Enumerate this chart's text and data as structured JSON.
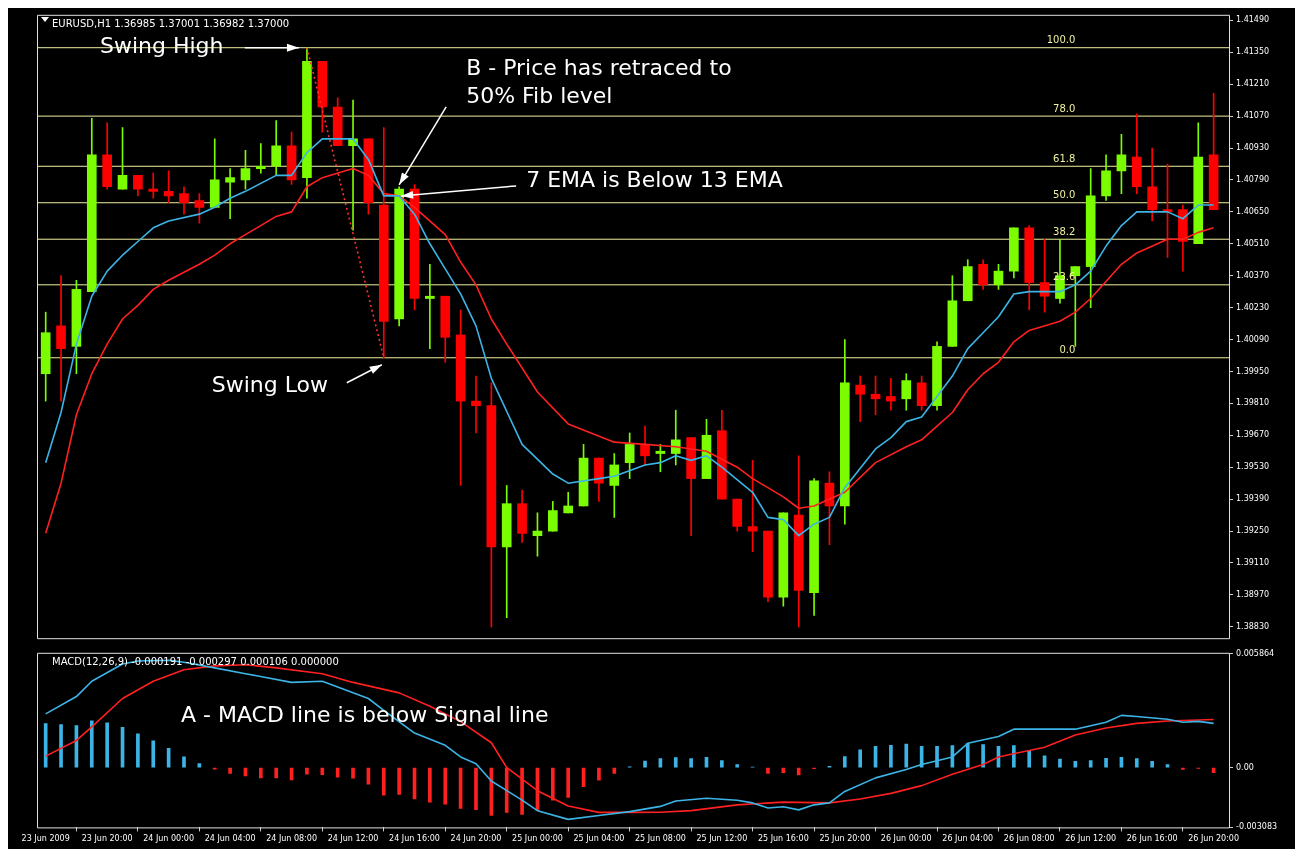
{
  "chart_data": [
    {
      "type": "candlestick",
      "title": "EURUSD,H1 1.36985 1.37001 1.36982 1.37000",
      "x": [
        "2009-06-23T16:00",
        "2009-06-23T17:00",
        "2009-06-23T18:00",
        "2009-06-23T19:00",
        "2009-06-23T20:00",
        "2009-06-23T21:00",
        "2009-06-23T22:00",
        "2009-06-23T23:00",
        "2009-06-24T00:00",
        "2009-06-24T01:00",
        "2009-06-24T02:00",
        "2009-06-24T03:00",
        "2009-06-24T04:00",
        "2009-06-24T05:00",
        "2009-06-24T06:00",
        "2009-06-24T07:00",
        "2009-06-24T08:00",
        "2009-06-24T09:00",
        "2009-06-24T10:00",
        "2009-06-24T11:00",
        "2009-06-24T12:00",
        "2009-06-24T13:00",
        "2009-06-24T14:00",
        "2009-06-24T15:00",
        "2009-06-24T16:00",
        "2009-06-24T17:00",
        "2009-06-24T18:00",
        "2009-06-24T19:00",
        "2009-06-24T20:00",
        "2009-06-24T21:00",
        "2009-06-24T22:00",
        "2009-06-24T23:00",
        "2009-06-25T00:00",
        "2009-06-25T01:00",
        "2009-06-25T02:00",
        "2009-06-25T03:00",
        "2009-06-25T04:00",
        "2009-06-25T05:00",
        "2009-06-25T06:00",
        "2009-06-25T07:00",
        "2009-06-25T08:00",
        "2009-06-25T09:00",
        "2009-06-25T10:00",
        "2009-06-25T11:00",
        "2009-06-25T12:00",
        "2009-06-25T13:00",
        "2009-06-25T14:00",
        "2009-06-25T15:00",
        "2009-06-25T16:00",
        "2009-06-25T17:00",
        "2009-06-25T18:00",
        "2009-06-25T19:00",
        "2009-06-25T20:00",
        "2009-06-25T21:00",
        "2009-06-25T22:00",
        "2009-06-25T23:00",
        "2009-06-26T00:00",
        "2009-06-26T01:00",
        "2009-06-26T02:00",
        "2009-06-26T03:00",
        "2009-06-26T04:00",
        "2009-06-26T05:00",
        "2009-06-26T06:00",
        "2009-06-26T07:00",
        "2009-06-26T08:00",
        "2009-06-26T09:00",
        "2009-06-26T10:00",
        "2009-06-26T11:00",
        "2009-06-26T12:00",
        "2009-06-26T13:00",
        "2009-06-26T14:00",
        "2009-06-26T15:00",
        "2009-06-26T16:00",
        "2009-06-26T17:00",
        "2009-06-26T18:00",
        "2009-06-26T19:00",
        "2009-06-26T20:00"
      ],
      "ohlc": [
        [
          1.3994,
          1.4021,
          1.3982,
          1.4012
        ],
        [
          1.4015,
          1.4037,
          1.3982,
          1.4005
        ],
        [
          1.4006,
          1.4035,
          1.3994,
          1.4031
        ],
        [
          1.403,
          1.4106,
          1.403,
          1.409
        ],
        [
          1.409,
          1.4104,
          1.4075,
          1.4076
        ],
        [
          1.4075,
          1.4102,
          1.4075,
          1.4081
        ],
        [
          1.4081,
          1.4081,
          1.4072,
          1.4075
        ],
        [
          1.4075,
          1.4082,
          1.4071,
          1.4074
        ],
        [
          1.4074,
          1.4083,
          1.4069,
          1.4072
        ],
        [
          1.4073,
          1.4076,
          1.4064,
          1.4069
        ],
        [
          1.407,
          1.4073,
          1.406,
          1.4067
        ],
        [
          1.4067,
          1.4097,
          1.4067,
          1.4079
        ],
        [
          1.4078,
          1.4084,
          1.4062,
          1.408
        ],
        [
          1.4079,
          1.4092,
          1.4075,
          1.4084
        ],
        [
          1.4084,
          1.4095,
          1.4082,
          1.4085
        ],
        [
          1.4085,
          1.4105,
          1.4081,
          1.4094
        ],
        [
          1.4094,
          1.41,
          1.4077,
          1.4079
        ],
        [
          1.408,
          1.4137,
          1.4071,
          1.4131
        ],
        [
          1.4131,
          1.4131,
          1.41,
          1.4111
        ],
        [
          1.4111,
          1.4115,
          1.4094,
          1.4094
        ],
        [
          1.4094,
          1.4114,
          1.4057,
          1.4097
        ],
        [
          1.4097,
          1.4097,
          1.4064,
          1.4069
        ],
        [
          1.4068,
          1.4102,
          1.4001,
          1.4017
        ],
        [
          1.4018,
          1.4076,
          1.4015,
          1.4075
        ],
        [
          1.4075,
          1.4077,
          1.4022,
          1.4027
        ],
        [
          1.4027,
          1.4042,
          1.4005,
          1.4028
        ],
        [
          1.4028,
          1.4028,
          1.3999,
          1.401
        ],
        [
          1.4011,
          1.4022,
          1.3945,
          1.3982
        ],
        [
          1.3982,
          1.3993,
          1.3968,
          1.398
        ],
        [
          1.398,
          1.399,
          1.3883,
          1.3918
        ],
        [
          1.3918,
          1.3945,
          1.3887,
          1.3937
        ],
        [
          1.3937,
          1.3943,
          1.392,
          1.3924
        ],
        [
          1.3923,
          1.3933,
          1.3914,
          1.3925
        ],
        [
          1.3925,
          1.3938,
          1.3925,
          1.3934
        ],
        [
          1.3933,
          1.3942,
          1.3933,
          1.3936
        ],
        [
          1.3936,
          1.3963,
          1.3936,
          1.3957
        ],
        [
          1.3957,
          1.3957,
          1.3938,
          1.3946
        ],
        [
          1.3945,
          1.3959,
          1.3931,
          1.3954
        ],
        [
          1.3955,
          1.3968,
          1.3948,
          1.3963
        ],
        [
          1.3963,
          1.3971,
          1.3954,
          1.3958
        ],
        [
          1.3959,
          1.3963,
          1.3951,
          1.396
        ],
        [
          1.3959,
          1.3978,
          1.3954,
          1.3965
        ],
        [
          1.3966,
          1.3966,
          1.3923,
          1.3948
        ],
        [
          1.3948,
          1.3974,
          1.3948,
          1.3967
        ],
        [
          1.3969,
          1.3978,
          1.3939,
          1.3939
        ],
        [
          1.3939,
          1.3939,
          1.3925,
          1.3927
        ],
        [
          1.3927,
          1.3956,
          1.3916,
          1.3925
        ],
        [
          1.3925,
          1.3925,
          1.3894,
          1.3896
        ],
        [
          1.3896,
          1.3933,
          1.3892,
          1.3933
        ],
        [
          1.3932,
          1.3958,
          1.3883,
          1.3899
        ],
        [
          1.3898,
          1.3948,
          1.3888,
          1.3947
        ],
        [
          1.3946,
          1.3951,
          1.3919,
          1.3936
        ],
        [
          1.3936,
          1.4009,
          1.3928,
          1.399
        ],
        [
          1.3989,
          1.3993,
          1.3973,
          1.3985
        ],
        [
          1.3985,
          1.3993,
          1.3976,
          1.3983
        ],
        [
          1.3984,
          1.3992,
          1.3978,
          1.3982
        ],
        [
          1.3983,
          1.3994,
          1.3978,
          1.3991
        ],
        [
          1.399,
          1.3993,
          1.3978,
          1.398
        ],
        [
          1.398,
          1.4008,
          1.3978,
          1.4006
        ],
        [
          1.4006,
          1.4037,
          1.4006,
          1.4026
        ],
        [
          1.4026,
          1.4044,
          1.4026,
          1.4041
        ],
        [
          1.4042,
          1.4044,
          1.4031,
          1.4033
        ],
        [
          1.4033,
          1.4042,
          1.4031,
          1.4039
        ],
        [
          1.4039,
          1.4058,
          1.4036,
          1.4058
        ],
        [
          1.4058,
          1.4059,
          1.4022,
          1.4034
        ],
        [
          1.4034,
          1.4053,
          1.4021,
          1.4028
        ],
        [
          1.4027,
          1.4053,
          1.4025,
          1.4037
        ],
        [
          1.4037,
          1.4041,
          1.4006,
          1.4041
        ],
        [
          1.4041,
          1.4084,
          1.4023,
          1.4072
        ],
        [
          1.4072,
          1.409,
          1.407,
          1.4083
        ],
        [
          1.4083,
          1.4099,
          1.4073,
          1.409
        ],
        [
          1.4089,
          1.4108,
          1.4073,
          1.4076
        ],
        [
          1.4076,
          1.4093,
          1.4061,
          1.4066
        ],
        [
          1.4066,
          1.4086,
          1.4045,
          1.4065
        ],
        [
          1.4066,
          1.4068,
          1.4039,
          1.4052
        ],
        [
          1.4051,
          1.4104,
          1.4051,
          1.4089
        ],
        [
          1.409,
          1.4117,
          1.4066,
          1.4066
        ]
      ],
      "colors": [
        "#7cfc00",
        "#ff0000",
        "#7cfc00",
        "#7cfc00",
        "#ff0000",
        "#7cfc00",
        "#ff0000",
        "#ff0000",
        "#ff0000",
        "#ff0000",
        "#ff0000",
        "#7cfc00",
        "#7cfc00",
        "#7cfc00",
        "#7cfc00",
        "#7cfc00",
        "#ff0000",
        "#7cfc00",
        "#ff0000",
        "#ff0000",
        "#7cfc00",
        "#ff0000",
        "#ff0000",
        "#7cfc00",
        "#ff0000",
        "#7cfc00",
        "#ff0000",
        "#ff0000",
        "#ff0000",
        "#ff0000",
        "#7cfc00",
        "#ff0000",
        "#7cfc00",
        "#7cfc00",
        "#7cfc00",
        "#7cfc00",
        "#ff0000",
        "#7cfc00",
        "#7cfc00",
        "#ff0000",
        "#7cfc00",
        "#7cfc00",
        "#ff0000",
        "#7cfc00",
        "#ff0000",
        "#ff0000",
        "#ff0000",
        "#ff0000",
        "#7cfc00",
        "#ff0000",
        "#7cfc00",
        "#ff0000",
        "#7cfc00",
        "#ff0000",
        "#ff0000",
        "#ff0000",
        "#7cfc00",
        "#ff0000",
        "#7cfc00",
        "#7cfc00",
        "#7cfc00",
        "#ff0000",
        "#7cfc00",
        "#7cfc00",
        "#ff0000",
        "#ff0000",
        "#7cfc00",
        "#7cfc00",
        "#7cfc00",
        "#7cfc00",
        "#7cfc00",
        "#ff0000",
        "#ff0000",
        "#ff0000",
        "#ff0000",
        "#7cfc00",
        "#ff0000"
      ],
      "series": [
        {
          "type": "line",
          "color": "#3cb4e6",
          "x": [
            "2009-06-23T16:00",
            "2009-06-23T17:00",
            "2009-06-23T18:00",
            "2009-06-23T19:00",
            "2009-06-23T20:00",
            "2009-06-23T21:00",
            "2009-06-23T22:00",
            "2009-06-23T23:00",
            "2009-06-24T00:00",
            "2009-06-24T02:00",
            "2009-06-24T03:00",
            "2009-06-24T04:00",
            "2009-06-24T05:00",
            "2009-06-24T07:00",
            "2009-06-24T08:00",
            "2009-06-24T09:00",
            "2009-06-24T10:00",
            "2009-06-24T12:00",
            "2009-06-24T13:00",
            "2009-06-24T14:00",
            "2009-06-24T15:00",
            "2009-06-24T16:00",
            "2009-06-24T17:00",
            "2009-06-24T18:00",
            "2009-06-24T19:00",
            "2009-06-24T20:00",
            "2009-06-24T21:00",
            "2009-06-24T23:00",
            "2009-06-25T01:00",
            "2009-06-25T02:00",
            "2009-06-25T04:00",
            "2009-06-25T05:00",
            "2009-06-25T07:00",
            "2009-06-25T08:00",
            "2009-06-25T09:00",
            "2009-06-25T10:00",
            "2009-06-25T11:00",
            "2009-06-25T12:00",
            "2009-06-25T14:00",
            "2009-06-25T15:00",
            "2009-06-25T16:00",
            "2009-06-25T17:00",
            "2009-06-25T18:00",
            "2009-06-25T19:00",
            "2009-06-25T20:00",
            "2009-06-25T22:00",
            "2009-06-25T23:00",
            "2009-06-26T00:00",
            "2009-06-26T01:00",
            "2009-06-26T02:00",
            "2009-06-26T03:00",
            "2009-06-26T04:00",
            "2009-06-26T05:00",
            "2009-06-26T06:00",
            "2009-06-26T07:00",
            "2009-06-26T08:00",
            "2009-06-26T10:00",
            "2009-06-26T11:00",
            "2009-06-26T12:00",
            "2009-06-26T13:00",
            "2009-06-26T14:00",
            "2009-06-26T15:00",
            "2009-06-26T17:00",
            "2009-06-26T18:00",
            "2009-06-26T19:00",
            "2009-06-26T20:00"
          ],
          "values": [
            1.3955,
            1.3977,
            1.4007,
            1.4028,
            1.4039,
            1.4046,
            1.4052,
            1.4058,
            1.4061,
            1.4064,
            1.4067,
            1.4071,
            1.4074,
            1.4081,
            1.4081,
            1.4091,
            1.4097,
            1.4097,
            1.4088,
            1.4072,
            1.4072,
            1.4064,
            1.4051,
            1.404,
            1.4029,
            1.4015,
            1.3992,
            1.3963,
            1.395,
            1.3946,
            1.3948,
            1.3949,
            1.3954,
            1.3955,
            1.3958,
            1.3956,
            1.3958,
            1.3953,
            1.3942,
            1.3931,
            1.393,
            1.3923,
            1.3928,
            1.3931,
            1.3944,
            1.3961,
            1.3966,
            1.3973,
            1.3975,
            1.3984,
            1.3993,
            1.4005,
            1.4012,
            1.4019,
            1.4029,
            1.403,
            1.403,
            1.4033,
            1.4039,
            1.405,
            1.4059,
            1.4065,
            1.4065,
            1.4062,
            1.4068,
            1.4068
          ]
        },
        {
          "type": "line",
          "color": "#ff2020",
          "x": [
            "2009-06-23T16:00",
            "2009-06-23T17:00",
            "2009-06-23T18:00",
            "2009-06-23T19:00",
            "2009-06-23T20:00",
            "2009-06-23T21:00",
            "2009-06-23T22:00",
            "2009-06-23T23:00",
            "2009-06-24T00:00",
            "2009-06-24T02:00",
            "2009-06-24T03:00",
            "2009-06-24T04:00",
            "2009-06-24T05:00",
            "2009-06-24T07:00",
            "2009-06-24T08:00",
            "2009-06-24T09:00",
            "2009-06-24T10:00",
            "2009-06-24T12:00",
            "2009-06-24T13:00",
            "2009-06-24T14:00",
            "2009-06-24T15:00",
            "2009-06-24T16:00",
            "2009-06-24T18:00",
            "2009-06-24T19:00",
            "2009-06-24T20:00",
            "2009-06-24T21:00",
            "2009-06-24T22:00",
            "2009-06-25T00:00",
            "2009-06-25T02:00",
            "2009-06-25T05:00",
            "2009-06-25T07:00",
            "2009-06-25T09:00",
            "2009-06-25T11:00",
            "2009-06-25T13:00",
            "2009-06-25T14:00",
            "2009-06-25T16:00",
            "2009-06-25T17:00",
            "2009-06-25T18:00",
            "2009-06-25T20:00",
            "2009-06-25T22:00",
            "2009-06-26T00:00",
            "2009-06-26T01:00",
            "2009-06-26T02:00",
            "2009-06-26T03:00",
            "2009-06-26T04:00",
            "2009-06-26T05:00",
            "2009-06-26T06:00",
            "2009-06-26T07:00",
            "2009-06-26T08:00",
            "2009-06-26T10:00",
            "2009-06-26T11:00",
            "2009-06-26T12:00",
            "2009-06-26T14:00",
            "2009-06-26T15:00",
            "2009-06-26T17:00",
            "2009-06-26T18:00",
            "2009-06-26T19:00",
            "2009-06-26T20:00"
          ],
          "values": [
            1.3924,
            1.3946,
            1.3976,
            1.3994,
            1.4007,
            1.4018,
            1.4024,
            1.4031,
            1.4035,
            1.4042,
            1.4046,
            1.4051,
            1.4055,
            1.4063,
            1.4065,
            1.4076,
            1.408,
            1.4084,
            1.4081,
            1.4073,
            1.4072,
            1.4067,
            1.4055,
            1.4043,
            1.4033,
            1.4018,
            1.4007,
            1.3986,
            1.3972,
            1.3964,
            1.3963,
            1.3962,
            1.396,
            1.3953,
            1.3948,
            1.394,
            1.3935,
            1.3936,
            1.3942,
            1.3955,
            1.3962,
            1.3965,
            1.3971,
            1.3977,
            1.3987,
            1.3994,
            1.3999,
            1.4008,
            1.4013,
            1.4017,
            1.4021,
            1.4027,
            1.4042,
            1.4047,
            1.4053,
            1.4053,
            1.4056,
            1.4058
          ]
        },
        {
          "type": "line",
          "color": "#ff3030",
          "line_style": "dotted",
          "x": [
            "2009-06-24T09:00",
            "2009-06-24T14:00"
          ],
          "values": [
            1.4137,
            1.4001
          ]
        }
      ],
      "xlim": [
        "2009-06-23T15:30",
        "2009-06-26T21:00"
      ],
      "ylim": [
        1.3878,
        1.4151
      ],
      "yticks": [
        {
          "value": 1.4149,
          "label": "1.41490"
        },
        {
          "value": 1.4135,
          "label": "1.41350"
        },
        {
          "value": 1.4121,
          "label": "1.41210"
        },
        {
          "value": 1.4107,
          "label": "1.41070"
        },
        {
          "value": 1.4093,
          "label": "1.40930"
        },
        {
          "value": 1.4079,
          "label": "1.40790"
        },
        {
          "value": 1.4065,
          "label": "1.40650"
        },
        {
          "value": 1.4051,
          "label": "1.40510"
        },
        {
          "value": 1.4037,
          "label": "1.40370"
        },
        {
          "value": 1.4023,
          "label": "1.40230"
        },
        {
          "value": 1.4009,
          "label": "1.40090"
        },
        {
          "value": 1.3995,
          "label": "1.39950"
        },
        {
          "value": 1.3981,
          "label": "1.39810"
        },
        {
          "value": 1.3967,
          "label": "1.39670"
        },
        {
          "value": 1.3953,
          "label": "1.39530"
        },
        {
          "value": 1.3939,
          "label": "1.39390"
        },
        {
          "value": 1.3925,
          "label": "1.39250"
        },
        {
          "value": 1.3911,
          "label": "1.39110"
        },
        {
          "value": 1.3897,
          "label": "1.38970"
        },
        {
          "value": 1.3883,
          "label": "1.38830"
        }
      ],
      "tick_labels": "y",
      "ref_lines": [
        {
          "axis": "y",
          "value": 1.4137,
          "color": "#f0f0a0"
        },
        {
          "axis": "y",
          "value": 1.4107,
          "color": "#f0f0a0"
        },
        {
          "axis": "y",
          "value": 1.4085,
          "color": "#f0f0a0"
        },
        {
          "axis": "y",
          "value": 1.4069,
          "color": "#f0f0a0"
        },
        {
          "axis": "y",
          "value": 1.4053,
          "color": "#f0f0a0"
        },
        {
          "axis": "y",
          "value": 1.4033,
          "color": "#f0f0a0"
        },
        {
          "axis": "y",
          "value": 1.4001,
          "color": "#f0f0a0"
        }
      ],
      "annotations": [
        {
          "text": "Swing High",
          "x": "2009-06-24T09:00",
          "y": 1.4137
        },
        {
          "text": "Swing Low",
          "x": "2009-06-24T14:00",
          "y": 1.4001
        },
        {
          "text": "B - Price has retraced to\n50% Fib level",
          "x": "2009-06-24T15:00",
          "y": 1.4076
        },
        {
          "text": "7 EMA is Below 13 EMA",
          "x": "2009-06-24T15:00",
          "y": 1.4072
        },
        {
          "text": "100.0",
          "x": "2009-06-26T11:00",
          "y": 1.4137
        },
        {
          "text": "78.0",
          "x": "2009-06-26T11:00",
          "y": 1.4107
        },
        {
          "text": "61.8",
          "x": "2009-06-26T11:00",
          "y": 1.4085
        },
        {
          "text": "50.0",
          "x": "2009-06-26T11:00",
          "y": 1.4069
        },
        {
          "text": "38.2",
          "x": "2009-06-26T11:00",
          "y": 1.4053
        },
        {
          "text": "23.6",
          "x": "2009-06-26T11:00",
          "y": 1.4033
        },
        {
          "text": "0.0",
          "x": "2009-06-26T11:00",
          "y": 1.4001
        }
      ]
    },
    {
      "type": "bar",
      "title": "MACD(12,26,9) -0.000191 -0.000297 0.000106 0.000000",
      "x": [
        "2009-06-23T16:00",
        "2009-06-23T17:00",
        "2009-06-23T18:00",
        "2009-06-23T19:00",
        "2009-06-23T20:00",
        "2009-06-23T21:00",
        "2009-06-23T22:00",
        "2009-06-23T23:00",
        "2009-06-24T00:00",
        "2009-06-24T01:00",
        "2009-06-24T02:00",
        "2009-06-24T03:00",
        "2009-06-24T04:00",
        "2009-06-24T05:00",
        "2009-06-24T06:00",
        "2009-06-24T07:00",
        "2009-06-24T08:00",
        "2009-06-24T09:00",
        "2009-06-24T10:00",
        "2009-06-24T11:00",
        "2009-06-24T12:00",
        "2009-06-24T13:00",
        "2009-06-24T14:00",
        "2009-06-24T15:00",
        "2009-06-24T16:00",
        "2009-06-24T17:00",
        "2009-06-24T18:00",
        "2009-06-24T19:00",
        "2009-06-24T20:00",
        "2009-06-24T21:00",
        "2009-06-24T22:00",
        "2009-06-24T23:00",
        "2009-06-25T00:00",
        "2009-06-25T01:00",
        "2009-06-25T02:00",
        "2009-06-25T03:00",
        "2009-06-25T04:00",
        "2009-06-25T05:00",
        "2009-06-25T06:00",
        "2009-06-25T07:00",
        "2009-06-25T08:00",
        "2009-06-25T09:00",
        "2009-06-25T10:00",
        "2009-06-25T11:00",
        "2009-06-25T12:00",
        "2009-06-25T13:00",
        "2009-06-25T14:00",
        "2009-06-25T15:00",
        "2009-06-25T16:00",
        "2009-06-25T17:00",
        "2009-06-25T18:00",
        "2009-06-25T19:00",
        "2009-06-25T20:00",
        "2009-06-25T21:00",
        "2009-06-25T22:00",
        "2009-06-25T23:00",
        "2009-06-26T00:00",
        "2009-06-26T01:00",
        "2009-06-26T02:00",
        "2009-06-26T03:00",
        "2009-06-26T04:00",
        "2009-06-26T05:00",
        "2009-06-26T06:00",
        "2009-06-26T07:00",
        "2009-06-26T08:00",
        "2009-06-26T09:00",
        "2009-06-26T10:00",
        "2009-06-26T11:00",
        "2009-06-26T12:00",
        "2009-06-26T13:00",
        "2009-06-26T14:00",
        "2009-06-26T15:00",
        "2009-06-26T16:00",
        "2009-06-26T17:00",
        "2009-06-26T18:00",
        "2009-06-26T19:00",
        "2009-06-26T20:00"
      ],
      "values": [
        0.00227,
        0.00221,
        0.00217,
        0.00241,
        0.00231,
        0.00207,
        0.00174,
        0.00138,
        0.00099,
        0.00055,
        0.0002,
        -8e-05,
        -0.0003,
        -0.00043,
        -0.00053,
        -0.00053,
        -0.00063,
        -0.00034,
        -0.00036,
        -0.00049,
        -0.00055,
        -0.00085,
        -0.00142,
        -0.00138,
        -0.00162,
        -0.00178,
        -0.00188,
        -0.00211,
        -0.00217,
        -0.00247,
        -0.00231,
        -0.00241,
        -0.00221,
        -0.00168,
        -0.00154,
        -0.00099,
        -0.00065,
        -0.0003,
        4e-05,
        0.00034,
        0.00047,
        0.00051,
        0.00046,
        0.00053,
        0.00036,
        0.00016,
        2e-05,
        -0.0003,
        -0.00026,
        -0.00038,
        -6e-05,
        6e-05,
        0.00057,
        0.00091,
        0.00109,
        0.00115,
        0.00121,
        0.00109,
        0.00109,
        0.00113,
        0.00125,
        0.00119,
        0.00109,
        0.00113,
        0.00089,
        0.00061,
        0.00044,
        0.00032,
        0.00036,
        0.00048,
        0.00053,
        0.00046,
        0.00032,
        0.00016,
        -0.0001,
        -4e-05,
        -0.00026
      ],
      "colors": [
        "#3cb4e6",
        "#3cb4e6",
        "#3cb4e6",
        "#3cb4e6",
        "#3cb4e6",
        "#3cb4e6",
        "#3cb4e6",
        "#3cb4e6",
        "#3cb4e6",
        "#3cb4e6",
        "#3cb4e6",
        "#ff2020",
        "#ff2020",
        "#ff2020",
        "#ff2020",
        "#ff2020",
        "#ff2020",
        "#ff2020",
        "#ff2020",
        "#ff2020",
        "#ff2020",
        "#ff2020",
        "#ff2020",
        "#ff2020",
        "#ff2020",
        "#ff2020",
        "#ff2020",
        "#ff2020",
        "#ff2020",
        "#ff2020",
        "#ff2020",
        "#ff2020",
        "#ff2020",
        "#ff2020",
        "#ff2020",
        "#ff2020",
        "#ff2020",
        "#ff2020",
        "#3cb4e6",
        "#3cb4e6",
        "#3cb4e6",
        "#3cb4e6",
        "#3cb4e6",
        "#3cb4e6",
        "#3cb4e6",
        "#3cb4e6",
        "#3cb4e6",
        "#ff2020",
        "#ff2020",
        "#ff2020",
        "#ff2020",
        "#3cb4e6",
        "#3cb4e6",
        "#3cb4e6",
        "#3cb4e6",
        "#3cb4e6",
        "#3cb4e6",
        "#3cb4e6",
        "#3cb4e6",
        "#3cb4e6",
        "#3cb4e6",
        "#3cb4e6",
        "#3cb4e6",
        "#3cb4e6",
        "#3cb4e6",
        "#3cb4e6",
        "#3cb4e6",
        "#3cb4e6",
        "#3cb4e6",
        "#3cb4e6",
        "#3cb4e6",
        "#3cb4e6",
        "#3cb4e6",
        "#3cb4e6",
        "#ff2020",
        "#ff2020",
        "#ff2020"
      ],
      "series": [
        {
          "type": "line",
          "color": "#3cb4e6",
          "x": [
            "2009-06-23T16:00",
            "2009-06-23T18:00",
            "2009-06-23T19:00",
            "2009-06-23T21:00",
            "2009-06-23T22:00",
            "2009-06-24T00:00",
            "2009-06-24T01:00",
            "2009-06-24T03:00",
            "2009-06-24T05:00",
            "2009-06-24T08:00",
            "2009-06-24T10:00",
            "2009-06-24T11:00",
            "2009-06-24T13:00",
            "2009-06-24T14:00",
            "2009-06-24T16:00",
            "2009-06-24T18:00",
            "2009-06-24T19:00",
            "2009-06-24T20:00",
            "2009-06-24T21:00",
            "2009-06-24T23:00",
            "2009-06-25T00:00",
            "2009-06-25T02:00",
            "2009-06-25T04:00",
            "2009-06-25T06:00",
            "2009-06-25T08:00",
            "2009-06-25T09:00",
            "2009-06-25T11:00",
            "2009-06-25T13:00",
            "2009-06-25T14:00",
            "2009-06-25T15:00",
            "2009-06-25T16:00",
            "2009-06-25T17:00",
            "2009-06-25T18:00",
            "2009-06-25T19:00",
            "2009-06-25T20:00",
            "2009-06-25T22:00",
            "2009-06-26T00:00",
            "2009-06-26T01:00",
            "2009-06-26T03:00",
            "2009-06-26T04:00",
            "2009-06-26T06:00",
            "2009-06-26T07:00",
            "2009-06-26T09:00",
            "2009-06-26T11:00",
            "2009-06-26T13:00",
            "2009-06-26T14:00",
            "2009-06-26T15:00",
            "2009-06-26T17:00",
            "2009-06-26T18:00",
            "2009-06-26T19:00",
            "2009-06-26T20:00"
          ],
          "values": [
            0.00277,
            0.00366,
            0.00445,
            0.00534,
            0.00549,
            0.00553,
            0.00543,
            0.00514,
            0.00484,
            0.00439,
            0.00445,
            0.00415,
            0.00356,
            0.00295,
            0.00178,
            0.00115,
            0.00055,
            0.0002,
            -0.00069,
            -0.00168,
            -0.00222,
            -0.00267,
            -0.00247,
            -0.00227,
            -0.002,
            -0.00172,
            -0.00158,
            -0.00168,
            -0.00182,
            -0.00208,
            -0.00202,
            -0.00218,
            -0.00192,
            -0.00182,
            -0.00123,
            -0.00053,
            -0.0001,
            0.00016,
            0.00055,
            0.00125,
            0.0016,
            0.00198,
            0.00198,
            0.00198,
            0.00234,
            0.00269,
            0.00263,
            0.00249,
            0.00234,
            0.00238,
            0.00228
          ]
        },
        {
          "type": "line",
          "color": "#ff2020",
          "x": [
            "2009-06-23T16:00",
            "2009-06-23T18:00",
            "2009-06-23T19:00",
            "2009-06-23T21:00",
            "2009-06-23T23:00",
            "2009-06-24T01:00",
            "2009-06-24T03:00",
            "2009-06-24T05:00",
            "2009-06-24T07:00",
            "2009-06-24T10:00",
            "2009-06-24T12:00",
            "2009-06-24T15:00",
            "2009-06-24T17:00",
            "2009-06-24T19:00",
            "2009-06-24T21:00",
            "2009-06-24T22:00",
            "2009-06-25T00:00",
            "2009-06-25T02:00",
            "2009-06-25T04:00",
            "2009-06-25T06:00",
            "2009-06-25T08:00",
            "2009-06-25T10:00",
            "2009-06-25T13:00",
            "2009-06-25T16:00",
            "2009-06-25T19:00",
            "2009-06-25T21:00",
            "2009-06-25T23:00",
            "2009-06-26T01:00",
            "2009-06-26T03:00",
            "2009-06-26T05:00",
            "2009-06-26T06:00",
            "2009-06-26T09:00",
            "2009-06-26T11:00",
            "2009-06-26T13:00",
            "2009-06-26T15:00",
            "2009-06-26T17:00",
            "2009-06-26T20:00"
          ],
          "values": [
            0.00059,
            0.0014,
            0.0021,
            0.00356,
            0.00445,
            0.00504,
            0.00524,
            0.0053,
            0.00514,
            0.00484,
            0.00439,
            0.00385,
            0.00316,
            0.00237,
            0.00128,
            0.0,
            -0.00119,
            -0.00198,
            -0.00231,
            -0.00231,
            -0.0023,
            -0.00222,
            -0.00192,
            -0.00178,
            -0.00182,
            -0.00162,
            -0.00133,
            -0.00093,
            -0.00034,
            0.00016,
            0.00055,
            0.00105,
            0.00168,
            0.00204,
            0.00228,
            0.0024,
            0.00248
          ]
        }
      ],
      "xlim": [
        "2009-06-23T15:30",
        "2009-06-26T21:00"
      ],
      "xticks": [
        {
          "value": "2009-06-23T16:00",
          "label": "23 Jun 2009"
        },
        {
          "value": "2009-06-23T20:00",
          "label": "23 Jun 20:00"
        },
        {
          "value": "2009-06-24T00:00",
          "label": "24 Jun 00:00"
        },
        {
          "value": "2009-06-24T04:00",
          "label": "24 Jun 04:00"
        },
        {
          "value": "2009-06-24T08:00",
          "label": "24 Jun 08:00"
        },
        {
          "value": "2009-06-24T12:00",
          "label": "24 Jun 12:00"
        },
        {
          "value": "2009-06-24T16:00",
          "label": "24 Jun 16:00"
        },
        {
          "value": "2009-06-24T20:00",
          "label": "24 Jun 20:00"
        },
        {
          "value": "2009-06-25T00:00",
          "label": "25 Jun 00:00"
        },
        {
          "value": "2009-06-25T04:00",
          "label": "25 Jun 04:00"
        },
        {
          "value": "2009-06-25T08:00",
          "label": "25 Jun 08:00"
        },
        {
          "value": "2009-06-25T12:00",
          "label": "25 Jun 12:00"
        },
        {
          "value": "2009-06-25T16:00",
          "label": "25 Jun 16:00"
        },
        {
          "value": "2009-06-25T20:00",
          "label": "25 Jun 20:00"
        },
        {
          "value": "2009-06-26T00:00",
          "label": "26 Jun 00:00"
        },
        {
          "value": "2009-06-26T04:00",
          "label": "26 Jun 04:00"
        },
        {
          "value": "2009-06-26T08:00",
          "label": "26 Jun 08:00"
        },
        {
          "value": "2009-06-26T12:00",
          "label": "26 Jun 12:00"
        },
        {
          "value": "2009-06-26T16:00",
          "label": "26 Jun 16:00"
        },
        {
          "value": "2009-06-26T20:00",
          "label": "26 Jun 20:00"
        }
      ],
      "ylim": [
        -0.003083,
        0.005864
      ],
      "yticks": [
        0.005864,
        {
          "value": 0,
          "label": "0.00"
        },
        -0.003083
      ],
      "annotations": [
        "A - MACD line is below Signal line"
      ]
    }
  ]
}
